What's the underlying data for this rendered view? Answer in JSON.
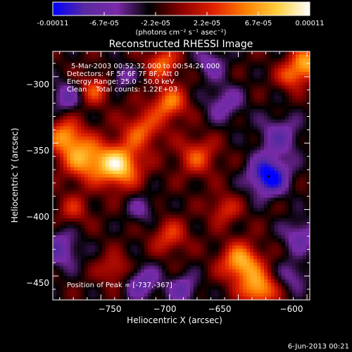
{
  "colorbar": {
    "ticks": [
      "-0.00011",
      "-6.7e-05",
      "-2.2e-05",
      "2.2e-05",
      "6.7e-05",
      "0.00011"
    ],
    "unit_label": "(photons cm⁻² s⁻¹ asec⁻²)",
    "colors": [
      "#0000ff",
      "#5a2aa0",
      "#7a2aa8",
      "#000000",
      "#8b0000",
      "#e02000",
      "#ff8000",
      "#ffd040",
      "#ffffff"
    ]
  },
  "title": "Reconstructed RHESSI Image",
  "annotations": {
    "time": "5-Mar-2003 00:52:32.000 to 00:54:24.000",
    "detectors": "Detectors: 4F 5F 6F 7F 8F, Att 0",
    "energy": "Energy Range: 25.0 - 50.0 keV",
    "clean": "Clean    Total counts: 1.22E+03",
    "peak": "Position of Peak = [-737,-367]"
  },
  "footer": {
    "date": "6-Jun-2013 00:21"
  },
  "chart_data": {
    "type": "heatmap",
    "title": "Reconstructed RHESSI Image",
    "xlabel": "Heliocentric X (arcsec)",
    "ylabel": "Heliocentric Y (arcsec)",
    "xlim": [
      -785,
      -598
    ],
    "ylim": [
      -468,
      -281
    ],
    "xticks": [
      -750,
      -700,
      -650,
      -600
    ],
    "yticks": [
      -300,
      -350,
      -400,
      -450
    ],
    "xtick_labels": [
      "−750",
      "−700",
      "−650",
      "−600"
    ],
    "ytick_labels": [
      "−300",
      "−350",
      "−400",
      "−450"
    ],
    "zlim": [
      -0.00011,
      0.00011
    ],
    "peak": [
      -737,
      -367
    ],
    "marker": [
      -628,
      -375
    ],
    "sources": [
      {
        "x": -737,
        "y": -367,
        "a": 1.0,
        "s": 11
      },
      {
        "x": -762,
        "y": -362,
        "a": 0.75,
        "s": 11
      },
      {
        "x": -776,
        "y": -345,
        "a": 0.7,
        "s": 9
      },
      {
        "x": -720,
        "y": -340,
        "a": 0.55,
        "s": 10
      },
      {
        "x": -700,
        "y": -320,
        "a": 0.65,
        "s": 9
      },
      {
        "x": -705,
        "y": -290,
        "a": 0.6,
        "s": 8
      },
      {
        "x": -680,
        "y": -360,
        "a": 0.5,
        "s": 10
      },
      {
        "x": -600,
        "y": -290,
        "a": 0.8,
        "s": 8
      },
      {
        "x": -612,
        "y": -300,
        "a": 0.5,
        "s": 7
      },
      {
        "x": -648,
        "y": -440,
        "a": 0.85,
        "s": 10
      },
      {
        "x": -635,
        "y": -460,
        "a": 0.8,
        "s": 9
      },
      {
        "x": -700,
        "y": -420,
        "a": 0.45,
        "s": 9
      },
      {
        "x": -740,
        "y": -445,
        "a": 0.4,
        "s": 8
      },
      {
        "x": -770,
        "y": -400,
        "a": 0.35,
        "s": 8
      },
      {
        "x": -660,
        "y": -400,
        "a": 0.4,
        "s": 8
      },
      {
        "x": -755,
        "y": -310,
        "a": 0.5,
        "s": 8
      },
      {
        "x": -628,
        "y": -375,
        "a": -0.9,
        "s": 10
      },
      {
        "x": -620,
        "y": -345,
        "a": -0.45,
        "s": 11
      },
      {
        "x": -660,
        "y": -320,
        "a": -0.4,
        "s": 10
      },
      {
        "x": -775,
        "y": -315,
        "a": -0.45,
        "s": 8
      },
      {
        "x": -780,
        "y": -430,
        "a": -0.5,
        "s": 10
      },
      {
        "x": -720,
        "y": -455,
        "a": -0.5,
        "s": 9
      },
      {
        "x": -690,
        "y": -460,
        "a": -0.45,
        "s": 8
      },
      {
        "x": -605,
        "y": -420,
        "a": -0.45,
        "s": 9
      },
      {
        "x": -610,
        "y": -450,
        "a": -0.35,
        "s": 8
      },
      {
        "x": -735,
        "y": -300,
        "a": -0.35,
        "s": 7
      },
      {
        "x": -670,
        "y": -290,
        "a": -0.4,
        "s": 8
      },
      {
        "x": -720,
        "y": -400,
        "a": -0.3,
        "s": 8
      }
    ]
  }
}
